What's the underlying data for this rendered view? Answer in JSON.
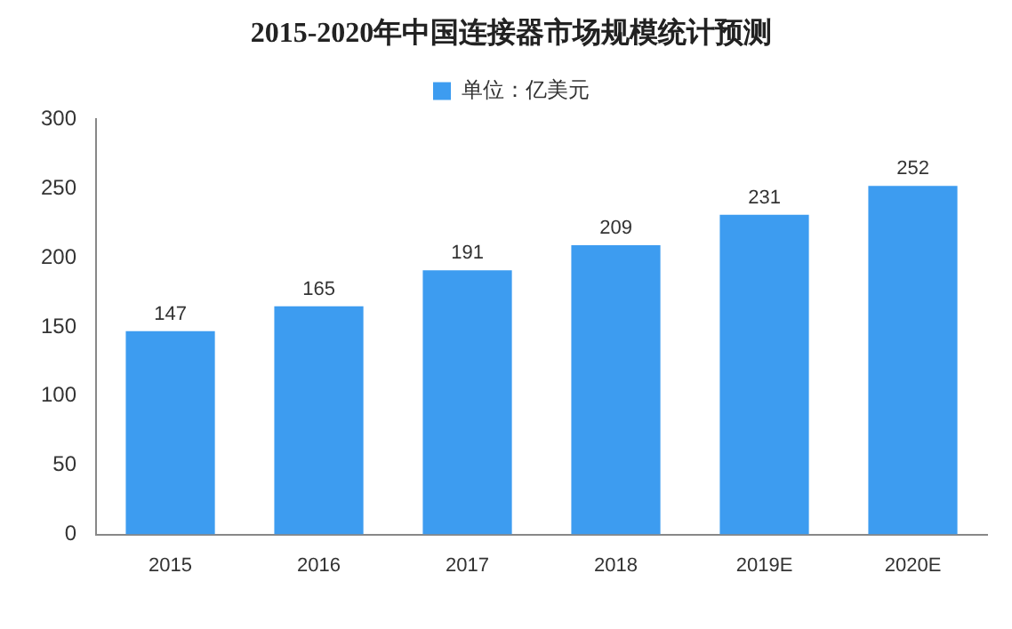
{
  "chart_data": {
    "type": "bar",
    "title": "2015-2020年中国连接器市场规模统计预测",
    "categories": [
      "2015",
      "2016",
      "2017",
      "2018",
      "2019E",
      "2020E"
    ],
    "series": [
      {
        "name": "单位：亿美元",
        "color": "#3d9cf0",
        "values": [
          147,
          165,
          191,
          209,
          231,
          252
        ]
      }
    ],
    "ylim": [
      0,
      300
    ],
    "yticks": [
      0,
      50,
      100,
      150,
      200,
      250,
      300
    ],
    "grid": false,
    "legend": "top",
    "data_labels": true
  }
}
